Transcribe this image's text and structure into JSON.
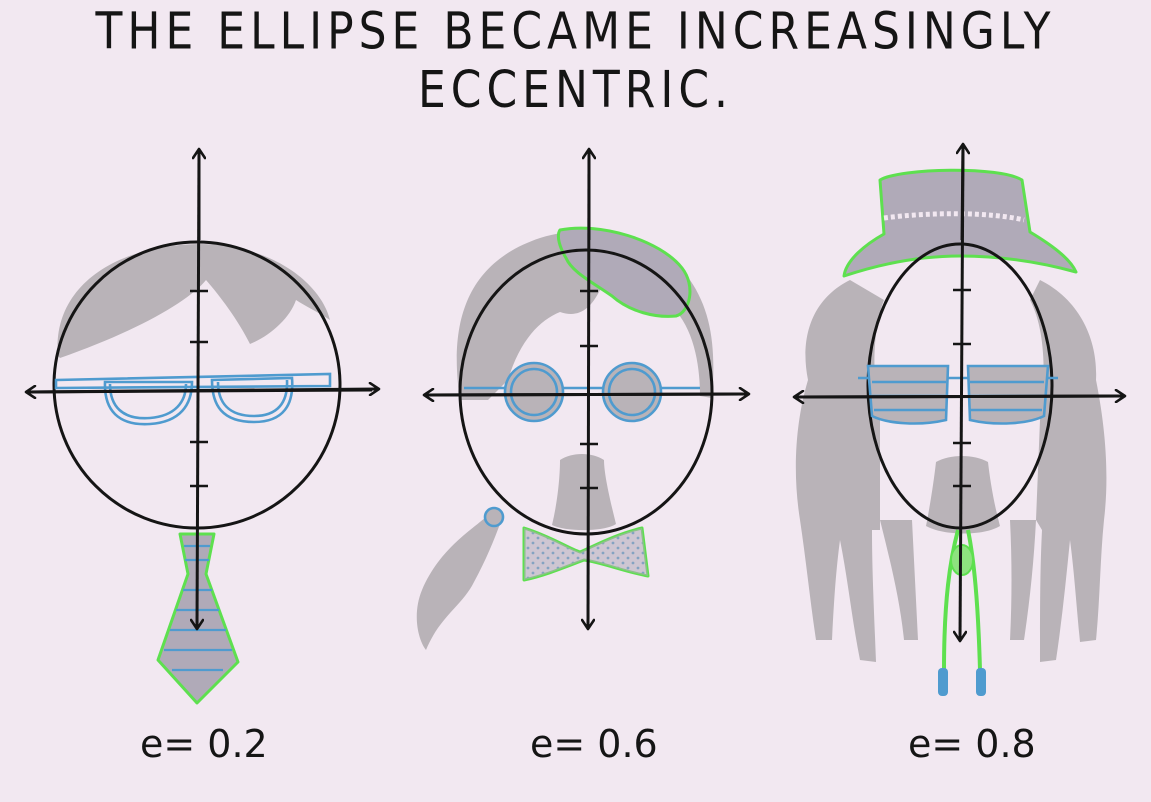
{
  "title": "THE ELLIPSE BECAME INCREASINGLY ECCENTRIC.",
  "figures": [
    {
      "label": "e= 0.2",
      "eccentricity": 0.2
    },
    {
      "label": "e= 0.6",
      "eccentricity": 0.6
    },
    {
      "label": "e= 0.8",
      "eccentricity": 0.8
    }
  ],
  "colors": {
    "background": "#f2e8f1",
    "ink": "#151515",
    "hair": "#b9b3b8",
    "glasses": "#4f9bcf",
    "accessory_outline": "#5ee04f",
    "accessory_fill": "#b0aab8"
  }
}
